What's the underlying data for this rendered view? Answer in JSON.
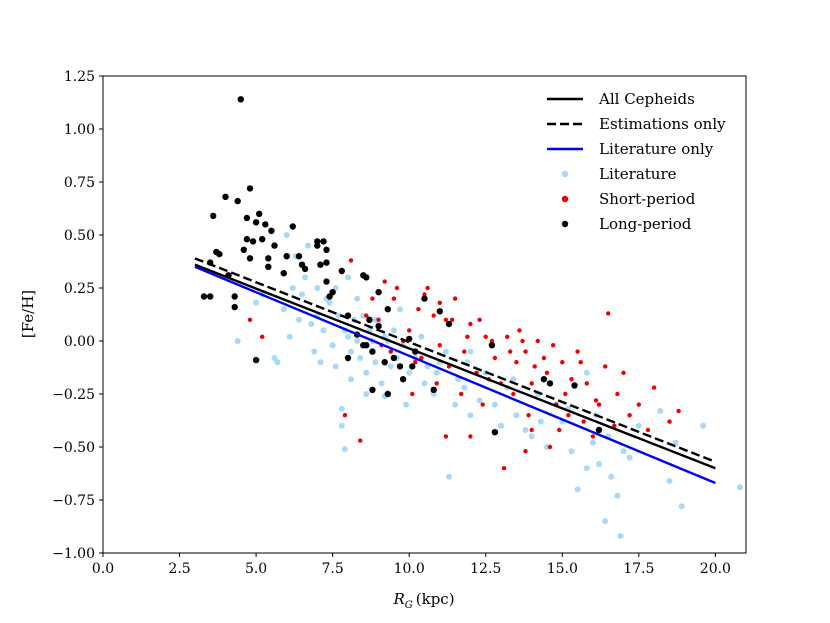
{
  "chart_data": {
    "type": "scatter",
    "title": "",
    "xlabel_main": "R",
    "xlabel_sub": "G",
    "xlabel_unit": "(kpc)",
    "ylabel": "[Fe/H]",
    "xlim": [
      0,
      21
    ],
    "ylim": [
      -1.0,
      1.25
    ],
    "xticks": [
      0.0,
      2.5,
      5.0,
      7.5,
      10.0,
      12.5,
      15.0,
      17.5,
      20.0
    ],
    "xtick_labels": [
      "0.0",
      "2.5",
      "5.0",
      "7.5",
      "10.0",
      "12.5",
      "15.0",
      "17.5",
      "20.0"
    ],
    "yticks": [
      -1.0,
      -0.75,
      -0.5,
      -0.25,
      0.0,
      0.25,
      0.5,
      0.75,
      1.0,
      1.25
    ],
    "ytick_labels": [
      "−1.00",
      "−0.75",
      "−0.50",
      "−0.25",
      "0.00",
      "0.25",
      "0.50",
      "0.75",
      "1.00",
      "1.25"
    ],
    "grid": false,
    "legend_position": "top-right",
    "lines": [
      {
        "name": "All Cepheids",
        "color": "#000000",
        "style": "solid",
        "x": [
          3.0,
          20.0
        ],
        "y": [
          0.36,
          -0.6
        ]
      },
      {
        "name": "Estimations only",
        "color": "#000000",
        "style": "dashed",
        "x": [
          3.0,
          20.0
        ],
        "y": [
          0.39,
          -0.57
        ]
      },
      {
        "name": "Literature only",
        "color": "#0000ee",
        "style": "solid",
        "x": [
          3.0,
          20.0
        ],
        "y": [
          0.35,
          -0.67
        ]
      }
    ],
    "scatter": [
      {
        "name": "Literature",
        "color": "#87cefa",
        "alpha": 0.75,
        "size": 3.0,
        "points": [
          [
            4.4,
            0.0
          ],
          [
            5.6,
            -0.08
          ],
          [
            5.7,
            -0.1
          ],
          [
            6.2,
            0.25
          ],
          [
            6.5,
            0.22
          ],
          [
            6.8,
            0.08
          ],
          [
            7.0,
            0.12
          ],
          [
            7.2,
            0.05
          ],
          [
            7.4,
            0.18
          ],
          [
            7.5,
            -0.02
          ],
          [
            7.6,
            0.25
          ],
          [
            7.8,
            -0.32
          ],
          [
            7.8,
            -0.4
          ],
          [
            7.9,
            -0.51
          ],
          [
            8.0,
            0.02
          ],
          [
            8.1,
            -0.05
          ],
          [
            8.2,
            0.1
          ],
          [
            8.3,
            0.0
          ],
          [
            8.4,
            -0.08
          ],
          [
            8.5,
            0.12
          ],
          [
            8.6,
            -0.15
          ],
          [
            8.7,
            0.05
          ],
          [
            8.8,
            0.0
          ],
          [
            8.9,
            -0.1
          ],
          [
            9.0,
            0.08
          ],
          [
            9.1,
            -0.2
          ],
          [
            9.2,
            -0.26
          ],
          [
            9.3,
            0.0
          ],
          [
            9.4,
            -0.12
          ],
          [
            9.5,
            0.05
          ],
          [
            9.6,
            -0.08
          ],
          [
            9.8,
            -0.02
          ],
          [
            10.0,
            -0.15
          ],
          [
            10.2,
            -0.08
          ],
          [
            10.5,
            -0.2
          ],
          [
            10.8,
            -0.25
          ],
          [
            11.0,
            -0.1
          ],
          [
            11.3,
            -0.64
          ],
          [
            11.5,
            -0.3
          ],
          [
            11.8,
            -0.22
          ],
          [
            12.0,
            -0.35
          ],
          [
            12.3,
            -0.28
          ],
          [
            12.8,
            -0.3
          ],
          [
            13.0,
            -0.4
          ],
          [
            13.5,
            -0.35
          ],
          [
            14.0,
            -0.45
          ],
          [
            14.5,
            -0.5
          ],
          [
            15.0,
            -0.38
          ],
          [
            15.3,
            -0.52
          ],
          [
            15.5,
            -0.7
          ],
          [
            15.8,
            -0.6
          ],
          [
            16.2,
            -0.58
          ],
          [
            16.4,
            -0.85
          ],
          [
            16.6,
            -0.64
          ],
          [
            16.8,
            -0.73
          ],
          [
            16.9,
            -0.92
          ],
          [
            17.2,
            -0.55
          ],
          [
            18.5,
            -0.66
          ],
          [
            18.9,
            -0.78
          ],
          [
            19.6,
            -0.4
          ],
          [
            20.8,
            -0.69
          ],
          [
            6.0,
            0.5
          ],
          [
            6.3,
            0.4
          ],
          [
            5.9,
            0.15
          ],
          [
            6.6,
            0.3
          ],
          [
            7.1,
            -0.1
          ],
          [
            7.3,
            0.2
          ],
          [
            6.9,
            -0.05
          ],
          [
            8.0,
            0.3
          ],
          [
            8.3,
            0.2
          ],
          [
            9.7,
            0.15
          ],
          [
            10.4,
            0.02
          ],
          [
            11.2,
            -0.05
          ],
          [
            12.5,
            -0.15
          ],
          [
            13.2,
            -0.22
          ],
          [
            14.2,
            -0.25
          ],
          [
            15.2,
            -0.32
          ],
          [
            16.0,
            -0.48
          ],
          [
            17.5,
            -0.4
          ],
          [
            18.2,
            -0.33
          ],
          [
            7.0,
            0.25
          ],
          [
            6.4,
            0.1
          ],
          [
            7.6,
            -0.12
          ],
          [
            8.6,
            -0.25
          ],
          [
            9.9,
            -0.3
          ],
          [
            10.9,
            -0.15
          ],
          [
            12.0,
            -0.05
          ],
          [
            14.8,
            -0.3
          ],
          [
            16.5,
            -0.45
          ],
          [
            5.2,
            0.22
          ],
          [
            5.4,
            0.35
          ],
          [
            6.7,
            0.45
          ],
          [
            7.7,
            0.12
          ],
          [
            8.1,
            -0.18
          ],
          [
            9.2,
            0.02
          ],
          [
            10.6,
            -0.12
          ],
          [
            11.6,
            -0.18
          ],
          [
            13.8,
            -0.42
          ],
          [
            15.8,
            -0.15
          ],
          [
            6.1,
            0.02
          ],
          [
            5.0,
            0.18
          ],
          [
            7.9,
            0.05
          ],
          [
            8.9,
            0.1
          ],
          [
            11.9,
            -0.1
          ],
          [
            13.4,
            -0.18
          ],
          [
            14.3,
            -0.38
          ],
          [
            16.1,
            -0.35
          ],
          [
            17.0,
            -0.52
          ],
          [
            18.7,
            -0.48
          ]
        ]
      },
      {
        "name": "Short-period",
        "color": "#ee0000",
        "alpha": 1.0,
        "size": 2.2,
        "points": [
          [
            4.8,
            0.1
          ],
          [
            5.2,
            0.02
          ],
          [
            7.9,
            -0.35
          ],
          [
            8.1,
            0.38
          ],
          [
            8.4,
            -0.47
          ],
          [
            8.8,
            0.2
          ],
          [
            9.0,
            0.1
          ],
          [
            9.5,
            0.2
          ],
          [
            9.8,
            0.0
          ],
          [
            10.0,
            0.05
          ],
          [
            10.2,
            -0.1
          ],
          [
            10.5,
            0.22
          ],
          [
            10.8,
            0.12
          ],
          [
            11.0,
            -0.02
          ],
          [
            11.2,
            0.1
          ],
          [
            11.5,
            0.2
          ],
          [
            11.8,
            -0.05
          ],
          [
            12.0,
            0.08
          ],
          [
            12.2,
            -0.15
          ],
          [
            12.5,
            0.02
          ],
          [
            12.8,
            -0.08
          ],
          [
            13.0,
            -0.2
          ],
          [
            13.2,
            0.02
          ],
          [
            13.5,
            -0.1
          ],
          [
            13.8,
            -0.05
          ],
          [
            14.0,
            -0.2
          ],
          [
            14.2,
            0.0
          ],
          [
            14.5,
            -0.15
          ],
          [
            14.8,
            -0.3
          ],
          [
            15.0,
            -0.1
          ],
          [
            15.2,
            -0.35
          ],
          [
            15.5,
            -0.05
          ],
          [
            15.8,
            -0.2
          ],
          [
            16.0,
            -0.45
          ],
          [
            16.2,
            -0.3
          ],
          [
            16.5,
            0.13
          ],
          [
            16.8,
            -0.25
          ],
          [
            17.0,
            -0.15
          ],
          [
            17.5,
            -0.3
          ],
          [
            18.0,
            -0.22
          ],
          [
            18.5,
            -0.38
          ],
          [
            18.8,
            -0.33
          ],
          [
            11.2,
            -0.45
          ],
          [
            12.0,
            -0.45
          ],
          [
            13.1,
            -0.6
          ],
          [
            13.8,
            -0.52
          ],
          [
            14.0,
            -0.42
          ],
          [
            14.6,
            -0.5
          ],
          [
            9.2,
            0.28
          ],
          [
            9.6,
            0.25
          ],
          [
            10.3,
            0.15
          ],
          [
            10.6,
            0.25
          ],
          [
            11.0,
            0.18
          ],
          [
            11.4,
            0.1
          ],
          [
            12.3,
            0.1
          ],
          [
            12.7,
            0.0
          ],
          [
            13.3,
            -0.05
          ],
          [
            13.6,
            0.05
          ],
          [
            14.4,
            -0.08
          ],
          [
            15.3,
            -0.18
          ],
          [
            16.4,
            -0.12
          ],
          [
            17.2,
            -0.35
          ],
          [
            10.1,
            -0.25
          ],
          [
            10.9,
            -0.2
          ],
          [
            11.7,
            -0.25
          ],
          [
            12.4,
            -0.3
          ],
          [
            13.9,
            -0.35
          ],
          [
            14.9,
            -0.42
          ],
          [
            15.7,
            -0.38
          ],
          [
            16.7,
            -0.4
          ],
          [
            9.4,
            -0.05
          ],
          [
            10.4,
            -0.08
          ],
          [
            11.3,
            -0.12
          ],
          [
            12.6,
            -0.18
          ],
          [
            13.4,
            -0.25
          ],
          [
            14.1,
            -0.12
          ],
          [
            15.1,
            -0.25
          ],
          [
            16.1,
            -0.28
          ],
          [
            8.6,
            0.12
          ],
          [
            9.1,
            -0.02
          ],
          [
            11.9,
            0.02
          ],
          [
            13.7,
            0.0
          ],
          [
            14.7,
            -0.02
          ],
          [
            15.6,
            -0.1
          ],
          [
            17.8,
            -0.42
          ]
        ]
      },
      {
        "name": "Long-period",
        "color": "#000000",
        "alpha": 1.0,
        "size": 3.2,
        "points": [
          [
            3.3,
            0.21
          ],
          [
            3.5,
            0.21
          ],
          [
            3.5,
            0.37
          ],
          [
            3.6,
            0.59
          ],
          [
            3.7,
            0.42
          ],
          [
            3.8,
            0.41
          ],
          [
            4.0,
            0.68
          ],
          [
            4.1,
            0.31
          ],
          [
            4.3,
            0.16
          ],
          [
            4.3,
            0.21
          ],
          [
            4.4,
            0.66
          ],
          [
            4.5,
            1.14
          ],
          [
            4.6,
            0.43
          ],
          [
            4.7,
            0.58
          ],
          [
            4.7,
            0.48
          ],
          [
            4.8,
            0.72
          ],
          [
            4.8,
            0.39
          ],
          [
            4.9,
            0.47
          ],
          [
            5.0,
            0.56
          ],
          [
            5.0,
            -0.09
          ],
          [
            5.1,
            0.6
          ],
          [
            5.2,
            0.48
          ],
          [
            5.3,
            0.55
          ],
          [
            5.4,
            0.39
          ],
          [
            5.4,
            0.35
          ],
          [
            5.5,
            0.52
          ],
          [
            5.6,
            0.45
          ],
          [
            5.9,
            0.32
          ],
          [
            6.0,
            0.4
          ],
          [
            6.2,
            0.54
          ],
          [
            6.4,
            0.4
          ],
          [
            6.5,
            0.36
          ],
          [
            6.6,
            0.34
          ],
          [
            7.0,
            0.47
          ],
          [
            7.0,
            0.45
          ],
          [
            7.1,
            0.36
          ],
          [
            7.2,
            0.47
          ],
          [
            7.3,
            0.37
          ],
          [
            7.3,
            0.43
          ],
          [
            7.3,
            0.28
          ],
          [
            7.4,
            0.21
          ],
          [
            7.5,
            0.23
          ],
          [
            7.8,
            0.33
          ],
          [
            8.0,
            0.12
          ],
          [
            8.0,
            -0.08
          ],
          [
            8.3,
            0.03
          ],
          [
            8.5,
            0.31
          ],
          [
            8.6,
            0.3
          ],
          [
            8.6,
            -0.02
          ],
          [
            8.7,
            0.1
          ],
          [
            8.8,
            -0.05
          ],
          [
            8.8,
            -0.23
          ],
          [
            9.0,
            0.23
          ],
          [
            9.0,
            0.07
          ],
          [
            9.3,
            0.15
          ],
          [
            9.3,
            -0.25
          ],
          [
            9.5,
            -0.08
          ],
          [
            9.7,
            -0.12
          ],
          [
            9.8,
            -0.18
          ],
          [
            10.0,
            0.01
          ],
          [
            10.2,
            -0.05
          ],
          [
            10.5,
            0.2
          ],
          [
            10.8,
            -0.23
          ],
          [
            11.0,
            0.14
          ],
          [
            11.3,
            0.08
          ],
          [
            12.7,
            -0.02
          ],
          [
            12.8,
            -0.43
          ],
          [
            14.4,
            -0.18
          ],
          [
            14.6,
            -0.2
          ],
          [
            15.4,
            -0.21
          ],
          [
            16.2,
            -0.42
          ],
          [
            8.5,
            -0.02
          ],
          [
            9.2,
            -0.1
          ],
          [
            10.1,
            -0.12
          ]
        ]
      }
    ],
    "legend": [
      {
        "label": "All Cepheids",
        "kind": "line",
        "color": "#000000",
        "style": "solid"
      },
      {
        "label": "Estimations only",
        "kind": "line",
        "color": "#000000",
        "style": "dashed"
      },
      {
        "label": "Literature only",
        "kind": "line",
        "color": "#0000ee",
        "style": "solid"
      },
      {
        "label": "Literature",
        "kind": "marker",
        "color": "#87cefa"
      },
      {
        "label": "Short-period",
        "kind": "marker",
        "color": "#ee0000"
      },
      {
        "label": "Long-period",
        "kind": "marker",
        "color": "#000000"
      }
    ]
  }
}
